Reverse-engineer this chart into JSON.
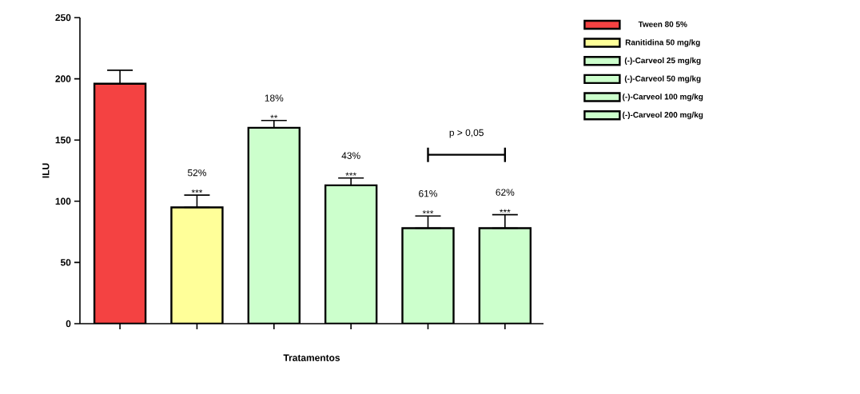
{
  "chart_data": {
    "type": "bar",
    "xlabel": "Tratamentos",
    "ylabel": "ILU",
    "categories": [
      null,
      null,
      null,
      null,
      null,
      null
    ],
    "series": [
      {
        "name": "Tween 80 5%",
        "color": "#f44242",
        "values": [
          196,
          null,
          null,
          null,
          null,
          null
        ],
        "errors": [
          [
            196,
            207
          ],
          null,
          null,
          null,
          null,
          null
        ]
      },
      {
        "name": "Ranitidina 50 mg/kg",
        "color": "#ffff99",
        "values": [
          null,
          95,
          null,
          null,
          null,
          null
        ],
        "errors": [
          null,
          [
            95,
            105
          ],
          null,
          null,
          null,
          null
        ]
      },
      {
        "name": "(-)-Carveol 25 mg/kg",
        "color": "#ccffcc",
        "values": [
          null,
          null,
          160,
          null,
          null,
          null
        ],
        "errors": [
          null,
          null,
          [
            160,
            166
          ],
          null,
          null,
          null
        ]
      },
      {
        "name": "(-)-Carveol 50 mg/kg",
        "color": "#ccffcc",
        "values": [
          null,
          null,
          null,
          113,
          null,
          null
        ],
        "errors": [
          null,
          null,
          null,
          [
            113,
            119
          ],
          null,
          null
        ]
      },
      {
        "name": "(-)-Carveol 100 mg/kg",
        "color": "#ccffcc",
        "values": [
          null,
          null,
          null,
          null,
          78,
          null
        ],
        "errors": [
          null,
          null,
          null,
          null,
          [
            78,
            88
          ],
          null
        ]
      },
      {
        "name": "(-)-Carveol 200 mg/kg",
        "color": "#ccffcc",
        "values": [
          null,
          null,
          null,
          null,
          null,
          78
        ],
        "errors": [
          null,
          null,
          null,
          null,
          null,
          [
            78,
            89
          ]
        ]
      }
    ],
    "annotations": [
      {
        "text": "***",
        "y": 105
      },
      {
        "text": "**",
        "y": 166
      },
      {
        "text": "***",
        "y": 119
      },
      {
        "text": "***",
        "y": 88
      },
      {
        "text": "***",
        "y": 89
      },
      "52%",
      "18%",
      "43%",
      "61%",
      "62%",
      "p > 0,05"
    ],
    "ylim": [
      0,
      250
    ],
    "yticks": [
      0,
      50,
      100,
      150,
      200,
      250
    ],
    "legend": "right"
  }
}
